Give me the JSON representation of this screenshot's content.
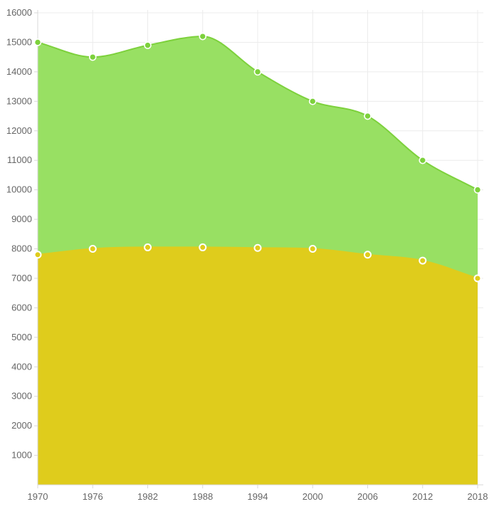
{
  "chart_data": {
    "type": "area",
    "stacked": true,
    "x": [
      1970,
      1976,
      1982,
      1988,
      1994,
      2000,
      2006,
      2012,
      2018
    ],
    "x_tick_labels": [
      "1970",
      "1976",
      "1982",
      "1988",
      "1994",
      "2000",
      "2006",
      "2012",
      "2018"
    ],
    "ylim": [
      0,
      16000
    ],
    "y_ticks": [
      1000,
      2000,
      3000,
      4000,
      5000,
      6000,
      7000,
      8000,
      9000,
      10000,
      11000,
      12000,
      13000,
      14000,
      15000,
      16000
    ],
    "y_tick_labels": [
      "1000",
      "2000",
      "3000",
      "4000",
      "5000",
      "6000",
      "7000",
      "8000",
      "9000",
      "10000",
      "11000",
      "12000",
      "13000",
      "14000",
      "15000",
      "16000"
    ],
    "grid": true,
    "legend": "none",
    "title": "",
    "xlabel": "",
    "ylabel": "",
    "series": [
      {
        "values": [
          7800,
          8000,
          8050,
          8050,
          8030,
          8000,
          7800,
          7600,
          7000
        ],
        "fill_color": "#dfcc1c",
        "line_color": "#dfcc1c",
        "marker_stroke": "#ffffff"
      },
      {
        "values": [
          7200,
          6500,
          6850,
          7150,
          5970,
          5000,
          4700,
          3400,
          3000
        ],
        "fill_color": "#98e063",
        "line_color": "#7dd13c",
        "marker_fill": "#7dd13c",
        "marker_stroke": "#ffffff"
      }
    ]
  }
}
